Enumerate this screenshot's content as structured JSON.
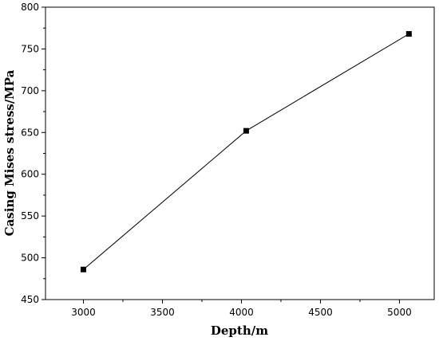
{
  "chart_data": {
    "type": "line",
    "title": "",
    "xlabel": "Depth/m",
    "ylabel": "Casing Mises stress/MPa",
    "xlim": [
      2760,
      5220
    ],
    "ylim": [
      450,
      800
    ],
    "x_ticks": [
      3000,
      3500,
      4000,
      4500,
      5000
    ],
    "y_ticks": [
      450,
      500,
      550,
      600,
      650,
      700,
      750,
      800
    ],
    "x_tick_labels": [
      "3000",
      "3500",
      "4000",
      "4500",
      "5000"
    ],
    "y_tick_labels": [
      "450",
      "500",
      "550",
      "600",
      "650",
      "700",
      "750",
      "800"
    ],
    "grid": false,
    "legend": "none",
    "series": [
      {
        "marker": "square",
        "color": "#000000",
        "x": [
          3000,
          4030,
          5060
        ],
        "y": [
          486,
          652,
          768
        ]
      }
    ]
  }
}
